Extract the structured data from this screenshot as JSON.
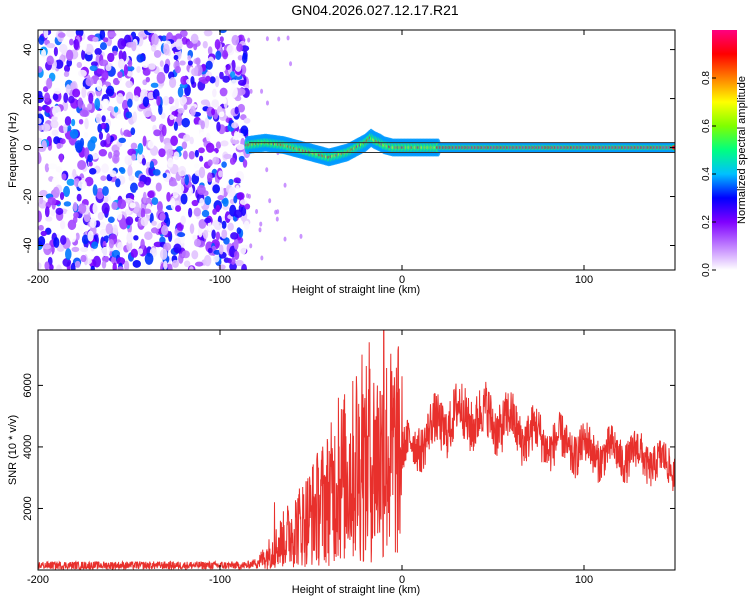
{
  "title": "GN04.2026.027.12.17.R21",
  "chart_data": [
    {
      "type": "heatmap",
      "xlabel": "Height of straight line (km)",
      "ylabel": "Frequency (Hz)",
      "xlim": [
        -200,
        150
      ],
      "ylim": [
        -50,
        48
      ],
      "xticks": [
        -200,
        -100,
        0,
        100
      ],
      "xtick_labels": [
        "-200",
        "-100",
        "0",
        "100"
      ],
      "yticks": [
        -40,
        -20,
        0,
        20,
        40
      ],
      "ytick_labels": [
        "-40",
        "-20",
        "0",
        "20",
        "40"
      ],
      "colorbar": {
        "label": "Normalized spectral amplitude",
        "range": [
          0,
          1
        ],
        "ticks": [
          0.0,
          0.2,
          0.4,
          0.6,
          0.8
        ],
        "tick_labels": [
          "0.0",
          "0.2",
          "0.4",
          "0.6",
          "0.8"
        ],
        "colors": [
          "#ffffff",
          "#c080ff",
          "#8000ff",
          "#0000ff",
          "#00c0ff",
          "#00ff80",
          "#80ff00",
          "#ffff00",
          "#ff8000",
          "#ff0000",
          "#ff0080"
        ]
      },
      "noise_region_x": [
        -200,
        -85
      ],
      "signal_track": {
        "x": [
          -85,
          -75,
          -65,
          -55,
          -50,
          -45,
          -40,
          -35,
          -30,
          -25,
          -20,
          -17,
          -15,
          -12,
          -10,
          -5,
          0,
          10,
          20,
          40,
          60,
          80,
          100,
          120,
          150
        ],
        "y": [
          1,
          2,
          1,
          -1,
          -2,
          -3,
          -4,
          -3,
          -2,
          0,
          2,
          4,
          3,
          2,
          1,
          0,
          0,
          0,
          0,
          0,
          0,
          0,
          0,
          0,
          0
        ],
        "peak_amplitude": 1.0
      },
      "guide_lines_y": [
        -2,
        2
      ]
    },
    {
      "type": "line",
      "xlabel": "Height of straight line (km)",
      "ylabel": "SNR (10 * v/v)",
      "xlim": [
        -200,
        150
      ],
      "ylim": [
        0,
        7800
      ],
      "xticks": [
        -200,
        -100,
        0,
        100
      ],
      "xtick_labels": [
        "-200",
        "-100",
        "0",
        "100"
      ],
      "yticks": [
        2000,
        4000,
        6000
      ],
      "ytick_labels": [
        "2000",
        "4000",
        "6000"
      ],
      "color": "#e8302c",
      "envelope": {
        "x": [
          -200,
          -100,
          -85,
          -78,
          -70,
          -65,
          -60,
          -55,
          -50,
          -45,
          -40,
          -35,
          -30,
          -25,
          -20,
          -15,
          -10,
          -5,
          0,
          10,
          20,
          30,
          40,
          50,
          60,
          70,
          80,
          90,
          100,
          110,
          120,
          130,
          140,
          150
        ],
        "y": [
          150,
          150,
          150,
          300,
          700,
          1000,
          1300,
          1500,
          1800,
          2100,
          2400,
          2800,
          3100,
          3300,
          3400,
          3600,
          3700,
          3750,
          3800,
          4200,
          4700,
          5000,
          5000,
          4900,
          4700,
          4400,
          4200,
          4000,
          3900,
          3800,
          3750,
          3700,
          3500,
          3300
        ]
      },
      "spikes": [
        {
          "x": -70,
          "y": 2200
        },
        {
          "x": -35,
          "y": 5600
        },
        {
          "x": -25,
          "y": 6300
        },
        {
          "x": -22,
          "y": 7000
        },
        {
          "x": -18,
          "y": 7400
        },
        {
          "x": -12,
          "y": 5800
        },
        {
          "x": -10,
          "y": 7800
        },
        {
          "x": 45,
          "y": 5300
        },
        {
          "x": 103,
          "y": 4550
        }
      ]
    }
  ]
}
